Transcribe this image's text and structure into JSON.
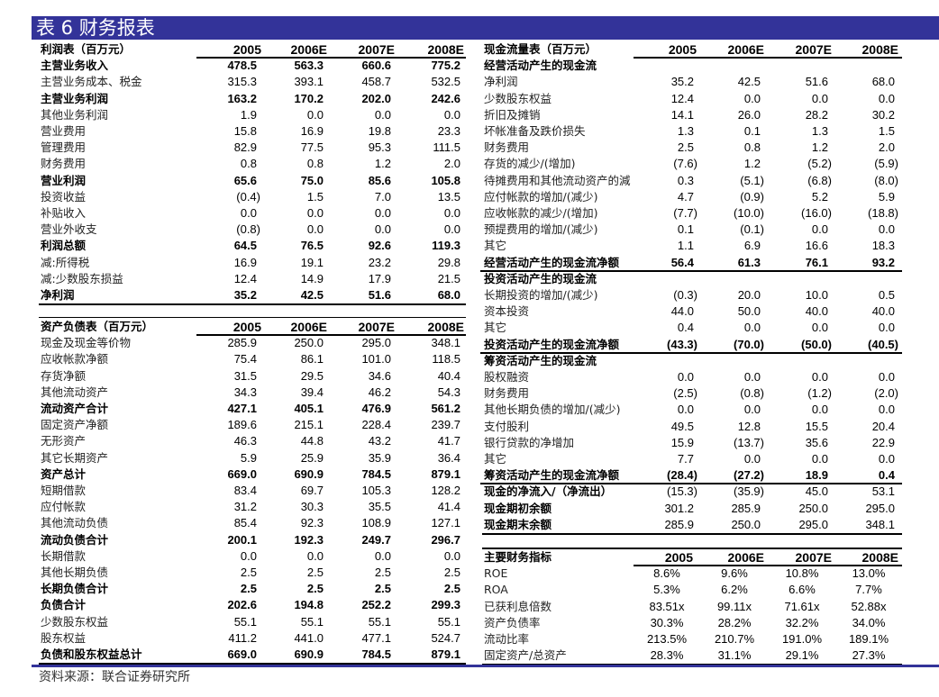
{
  "title": "表 6 财务报表",
  "footer": "资料来源：联合证券研究所",
  "colors": {
    "title_bar": "#333399",
    "title_text": "#ffffff"
  },
  "income": {
    "header": "利润表（百万元）",
    "years": [
      "2005",
      "2006E",
      "2007E",
      "2008E"
    ],
    "rows": [
      {
        "label": "主营业务收入",
        "values": [
          "478.5",
          "563.3",
          "660.6",
          "775.2"
        ],
        "bold": true
      },
      {
        "label": "主营业务成本、税金",
        "values": [
          "315.3",
          "393.1",
          "458.7",
          "532.5"
        ]
      },
      {
        "label": "主营业务利润",
        "values": [
          "163.2",
          "170.2",
          "202.0",
          "242.6"
        ],
        "bold": true
      },
      {
        "label": "其他业务利润",
        "values": [
          "1.9",
          "0.0",
          "0.0",
          "0.0"
        ]
      },
      {
        "label": "营业费用",
        "values": [
          "15.8",
          "16.9",
          "19.8",
          "23.3"
        ]
      },
      {
        "label": "管理费用",
        "values": [
          "82.9",
          "77.5",
          "95.3",
          "111.5"
        ]
      },
      {
        "label": "财务费用",
        "values": [
          "0.8",
          "0.8",
          "1.2",
          "2.0"
        ]
      },
      {
        "label": "营业利润",
        "values": [
          "65.6",
          "75.0",
          "85.6",
          "105.8"
        ],
        "bold": true
      },
      {
        "label": "投资收益",
        "values": [
          "(0.4)",
          "1.5",
          "7.0",
          "13.5"
        ]
      },
      {
        "label": "补贴收入",
        "values": [
          "0.0",
          "0.0",
          "0.0",
          "0.0"
        ]
      },
      {
        "label": "营业外收支",
        "values": [
          "(0.8)",
          "0.0",
          "0.0",
          "0.0"
        ]
      },
      {
        "label": "利润总额",
        "values": [
          "64.5",
          "76.5",
          "92.6",
          "119.3"
        ],
        "bold": true
      },
      {
        "label": "减:所得税",
        "values": [
          "16.9",
          "19.1",
          "23.2",
          "29.8"
        ]
      },
      {
        "label": "减:少数股东损益",
        "values": [
          "12.4",
          "14.9",
          "17.9",
          "21.5"
        ]
      },
      {
        "label": "净利润",
        "values": [
          "35.2",
          "42.5",
          "51.6",
          "68.0"
        ],
        "bold": true
      }
    ]
  },
  "balance": {
    "header": "资产负债表（百万元）",
    "years": [
      "2005",
      "2006E",
      "2007E",
      "2008E"
    ],
    "rows": [
      {
        "label": "现金及现金等价物",
        "values": [
          "285.9",
          "250.0",
          "295.0",
          "348.1"
        ]
      },
      {
        "label": "应收帐款净额",
        "values": [
          "75.4",
          "86.1",
          "101.0",
          "118.5"
        ]
      },
      {
        "label": "存货净额",
        "values": [
          "31.5",
          "29.5",
          "34.6",
          "40.4"
        ]
      },
      {
        "label": "其他流动资产",
        "values": [
          "34.3",
          "39.4",
          "46.2",
          "54.3"
        ]
      },
      {
        "label": "流动资产合计",
        "values": [
          "427.1",
          "405.1",
          "476.9",
          "561.2"
        ],
        "bold": true
      },
      {
        "label": "固定资产净额",
        "values": [
          "189.6",
          "215.1",
          "228.4",
          "239.7"
        ]
      },
      {
        "label": "无形资产",
        "values": [
          "46.3",
          "44.8",
          "43.2",
          "41.7"
        ]
      },
      {
        "label": "其它长期资产",
        "values": [
          "5.9",
          "25.9",
          "35.9",
          "36.4"
        ]
      },
      {
        "label": "资产总计",
        "values": [
          "669.0",
          "690.9",
          "784.5",
          "879.1"
        ],
        "bold": true
      },
      {
        "label": "短期借款",
        "values": [
          "83.4",
          "69.7",
          "105.3",
          "128.2"
        ]
      },
      {
        "label": "应付帐款",
        "values": [
          "31.2",
          "30.3",
          "35.5",
          "41.4"
        ]
      },
      {
        "label": "其他流动负债",
        "values": [
          "85.4",
          "92.3",
          "108.9",
          "127.1"
        ]
      },
      {
        "label": "流动负债合计",
        "values": [
          "200.1",
          "192.3",
          "249.7",
          "296.7"
        ],
        "bold": true
      },
      {
        "label": "长期借款",
        "values": [
          "0.0",
          "0.0",
          "0.0",
          "0.0"
        ]
      },
      {
        "label": "其他长期负债",
        "values": [
          "2.5",
          "2.5",
          "2.5",
          "2.5"
        ]
      },
      {
        "label": "长期负债合计",
        "values": [
          "2.5",
          "2.5",
          "2.5",
          "2.5"
        ],
        "bold": true
      },
      {
        "label": "负债合计",
        "values": [
          "202.6",
          "194.8",
          "252.2",
          "299.3"
        ],
        "bold": true
      },
      {
        "label": "少数股东权益",
        "values": [
          "55.1",
          "55.1",
          "55.1",
          "55.1"
        ]
      },
      {
        "label": "股东权益",
        "values": [
          "411.2",
          "441.0",
          "477.1",
          "524.7"
        ]
      },
      {
        "label": "负债和股东权益总计",
        "values": [
          "669.0",
          "690.9",
          "784.5",
          "879.1"
        ],
        "bold": true
      }
    ]
  },
  "cashflow": {
    "header": "现金流量表（百万元）",
    "years": [
      "2005",
      "2006E",
      "2007E",
      "2008E"
    ],
    "rows": [
      {
        "label": "经营活动产生的现金流",
        "values": [
          "",
          "",
          "",
          ""
        ],
        "bold": true
      },
      {
        "label": "净利润",
        "values": [
          "35.2",
          "42.5",
          "51.6",
          "68.0"
        ]
      },
      {
        "label": "少数股东权益",
        "values": [
          "12.4",
          "0.0",
          "0.0",
          "0.0"
        ]
      },
      {
        "label": "折旧及摊销",
        "values": [
          "14.1",
          "26.0",
          "28.2",
          "30.2"
        ]
      },
      {
        "label": "坏帐准备及跌价损失",
        "values": [
          "1.3",
          "0.1",
          "1.3",
          "1.5"
        ]
      },
      {
        "label": "财务费用",
        "values": [
          "2.5",
          "0.8",
          "1.2",
          "2.0"
        ]
      },
      {
        "label": "存货的减少/(增加)",
        "values": [
          "(7.6)",
          "1.2",
          "(5.2)",
          "(5.9)"
        ]
      },
      {
        "label": "待摊费用和其他流动资产的減",
        "values": [
          "0.3",
          "(5.1)",
          "(6.8)",
          "(8.0)"
        ]
      },
      {
        "label": "应付帐款的增加/(减少)",
        "values": [
          "4.7",
          "(0.9)",
          "5.2",
          "5.9"
        ]
      },
      {
        "label": "应收帐款的减少/(增加)",
        "values": [
          "(7.7)",
          "(10.0)",
          "(16.0)",
          "(18.8)"
        ]
      },
      {
        "label": "预提费用的增加/(减少)",
        "values": [
          "0.1",
          "(0.1)",
          "0.0",
          "0.0"
        ]
      },
      {
        "label": "其它",
        "values": [
          "1.1",
          "6.9",
          "16.6",
          "18.3"
        ]
      },
      {
        "label": "经营活动产生的现金流净额",
        "values": [
          "56.4",
          "61.3",
          "76.1",
          "93.2"
        ],
        "bold": true,
        "line_below": true
      },
      {
        "label": "投资活动产生的现金流",
        "values": [
          "",
          "",
          "",
          ""
        ],
        "bold": true
      },
      {
        "label": "长期投资的增加/(减少)",
        "values": [
          "(0.3)",
          "20.0",
          "10.0",
          "0.5"
        ]
      },
      {
        "label": "资本投资",
        "values": [
          "44.0",
          "50.0",
          "40.0",
          "40.0"
        ]
      },
      {
        "label": "其它",
        "values": [
          "0.4",
          "0.0",
          "0.0",
          "0.0"
        ]
      },
      {
        "label": "投资活动产生的现金流净额",
        "values": [
          "(43.3)",
          "(70.0)",
          "(50.0)",
          "(40.5)"
        ],
        "bold": true,
        "line_below": true
      },
      {
        "label": "筹资活动产生的现金流",
        "values": [
          "",
          "",
          "",
          ""
        ],
        "bold": true
      },
      {
        "label": "股权融资",
        "values": [
          "0.0",
          "0.0",
          "0.0",
          "0.0"
        ]
      },
      {
        "label": "财务费用",
        "values": [
          "(2.5)",
          "(0.8)",
          "(1.2)",
          "(2.0)"
        ]
      },
      {
        "label": "其他长期负债的增加/(减少)",
        "values": [
          "0.0",
          "0.0",
          "0.0",
          "0.0"
        ]
      },
      {
        "label": "支付股利",
        "values": [
          "49.5",
          "12.8",
          "15.5",
          "20.4"
        ]
      },
      {
        "label": "银行贷款的净增加",
        "values": [
          "15.9",
          "(13.7)",
          "35.6",
          "22.9"
        ]
      },
      {
        "label": "其它",
        "values": [
          "7.7",
          "0.0",
          "0.0",
          "0.0"
        ]
      },
      {
        "label": "筹资活动产生的现金流净额",
        "values": [
          "(28.4)",
          "(27.2)",
          "18.9",
          "0.4"
        ],
        "bold": true,
        "line_below": true
      },
      {
        "label": "现金的净流入/（净流出）",
        "values": [
          "(15.3)",
          "(35.9)",
          "45.0",
          "53.1"
        ],
        "bold_label": true
      },
      {
        "label": "现金期初余额",
        "values": [
          "301.2",
          "285.9",
          "250.0",
          "295.0"
        ],
        "bold_label": true
      },
      {
        "label": "现金期末余额",
        "values": [
          "285.9",
          "250.0",
          "295.0",
          "348.1"
        ],
        "bold_label": true
      }
    ]
  },
  "indicators": {
    "header": "主要财务指标",
    "years": [
      "2005",
      "2006E",
      "2007E",
      "2008E"
    ],
    "rows": [
      {
        "label": "ROE",
        "values": [
          "8.6%",
          "9.6%",
          "10.8%",
          "13.0%"
        ]
      },
      {
        "label": "ROA",
        "values": [
          "5.3%",
          "6.2%",
          "6.6%",
          "7.7%"
        ]
      },
      {
        "label": "已获利息倍数",
        "values": [
          "83.51x",
          "99.11x",
          "71.61x",
          "52.88x"
        ]
      },
      {
        "label": "资产负债率",
        "values": [
          "30.3%",
          "28.2%",
          "32.2%",
          "34.0%"
        ]
      },
      {
        "label": "流动比率",
        "values": [
          "213.5%",
          "210.7%",
          "191.0%",
          "189.1%"
        ]
      },
      {
        "label": "固定资产/总资产",
        "values": [
          "28.3%",
          "31.1%",
          "29.1%",
          "27.3%"
        ]
      }
    ]
  }
}
